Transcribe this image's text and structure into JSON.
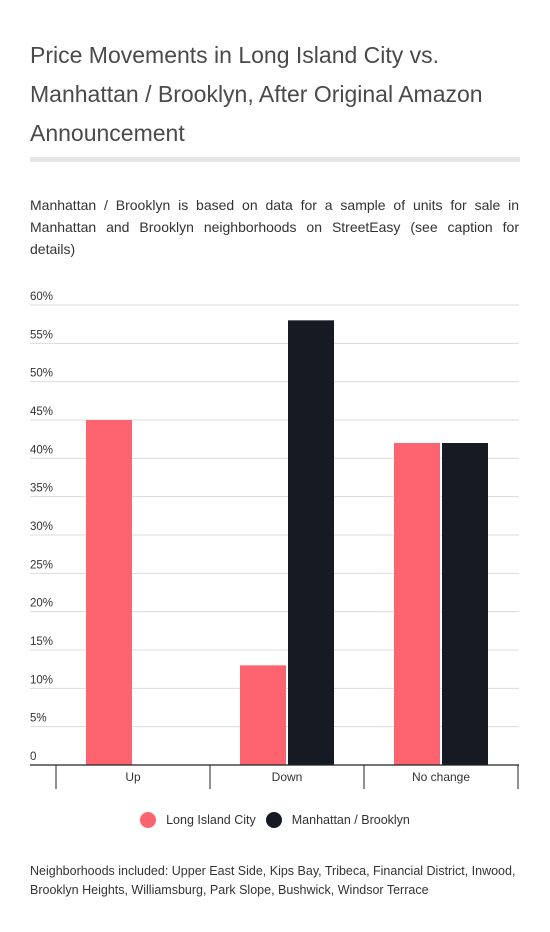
{
  "header": {
    "title": "Price Movements in Long Island City vs. Manhattan / Brooklyn, After Original Amazon Announcement",
    "subtitle": "Manhattan / Brooklyn is based on data for a sample of units for sale in Manhattan and Brooklyn neighborhoods on StreetEasy (see caption for details)"
  },
  "caption": "Neighborhoods included: Upper East Side, Kips Bay, Tribeca, Financial District, Inwood, Brooklyn Heights, Williamsburg, Park Slope, Bushwick, Windsor Terrace",
  "chart_data": {
    "type": "bar",
    "categories": [
      "Up",
      "Down",
      "No change"
    ],
    "series": [
      {
        "name": "Long Island City",
        "values": [
          45,
          13,
          42
        ],
        "color": "#fe6370"
      },
      {
        "name": "Manhattan / Brooklyn",
        "values": [
          0,
          58,
          42
        ],
        "color": "#161a22"
      }
    ],
    "ylim": [
      0,
      60
    ],
    "yticks": [
      0,
      5,
      10,
      15,
      20,
      25,
      30,
      35,
      40,
      45,
      50,
      55,
      60
    ],
    "ytick_labels": [
      "0",
      "5%",
      "10%",
      "15%",
      "20%",
      "25%",
      "30%",
      "35%",
      "40%",
      "45%",
      "50%",
      "55%",
      "60%"
    ],
    "grid": true,
    "legend_position": "bottom"
  }
}
